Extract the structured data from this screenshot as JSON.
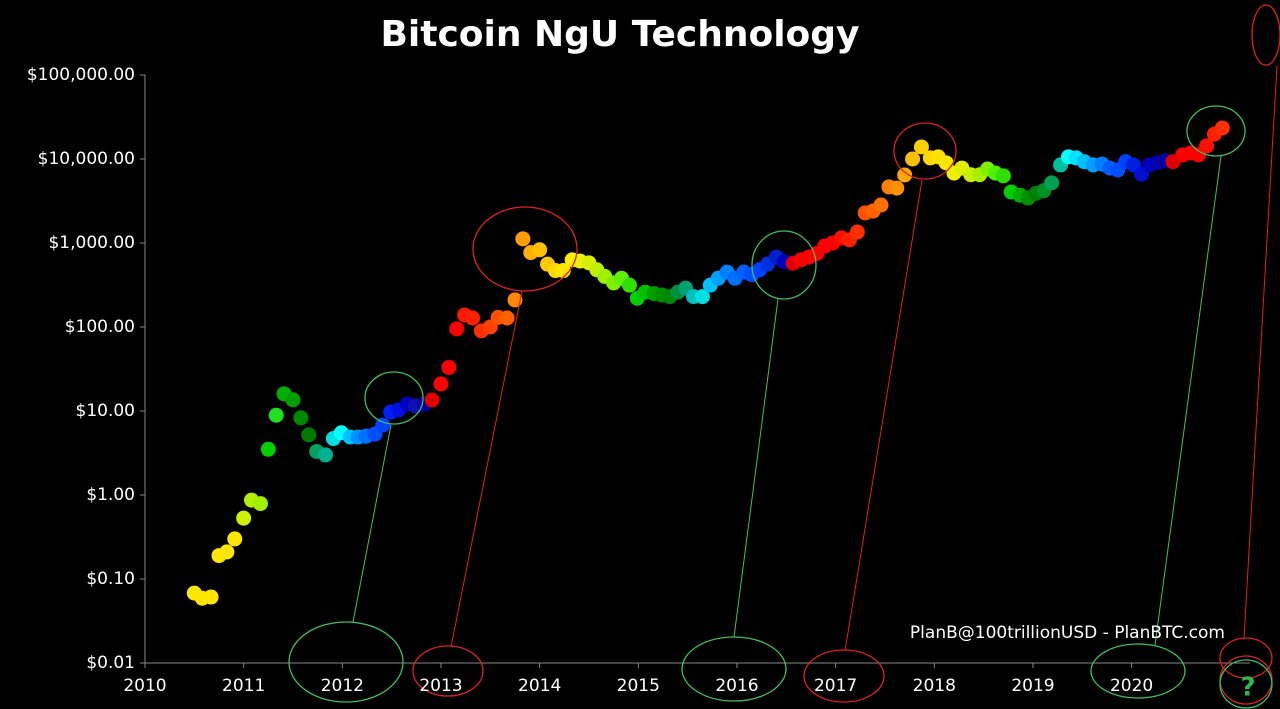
{
  "chart_data": {
    "type": "scatter",
    "title": "Bitcoin NgU Technology",
    "annotations": [
      "PlanB@100trillionUSD - PlanBTC.com",
      "?"
    ],
    "log_scale_y": true,
    "grid": false,
    "xlim": [
      2010,
      2021.2
    ],
    "xticks": [
      2010,
      2011,
      2012,
      2013,
      2014,
      2015,
      2016,
      2017,
      2018,
      2019,
      2020
    ],
    "ylim": [
      0.01,
      100000
    ],
    "yticks": [
      {
        "value": 0.01,
        "label": "$0.01"
      },
      {
        "value": 0.1,
        "label": "$0.10"
      },
      {
        "value": 1,
        "label": "$1.00"
      },
      {
        "value": 10,
        "label": "$10.00"
      },
      {
        "value": 100,
        "label": "$100.00"
      },
      {
        "value": 1000,
        "label": "$1,000.00"
      },
      {
        "value": 10000,
        "label": "$10,000.00"
      },
      {
        "value": 100000,
        "label": "$100,000.00"
      }
    ],
    "x": [
      2010.5,
      2010.58,
      2010.67,
      2010.75,
      2010.83,
      2010.91,
      2011.0,
      2011.08,
      2011.17,
      2011.25,
      2011.33,
      2011.41,
      2011.5,
      2011.58,
      2011.66,
      2011.74,
      2011.83,
      2011.91,
      2011.99,
      2012.08,
      2012.16,
      2012.24,
      2012.33,
      2012.41,
      2012.49,
      2012.57,
      2012.66,
      2012.74,
      2012.83,
      2012.91,
      2013.0,
      2013.08,
      2013.16,
      2013.24,
      2013.32,
      2013.41,
      2013.5,
      2013.58,
      2013.67,
      2013.75,
      2013.83,
      2013.91,
      2014.0,
      2014.08,
      2014.16,
      2014.24,
      2014.33,
      2014.41,
      2014.5,
      2014.58,
      2014.66,
      2014.75,
      2014.83,
      2014.91,
      2014.99,
      2015.07,
      2015.16,
      2015.24,
      2015.32,
      2015.4,
      2015.48,
      2015.56,
      2015.65,
      2015.73,
      2015.81,
      2015.9,
      2015.98,
      2016.07,
      2016.15,
      2016.23,
      2016.31,
      2016.4,
      2016.48,
      2016.57,
      2016.65,
      2016.73,
      2016.81,
      2016.89,
      2016.97,
      2017.06,
      2017.14,
      2017.22,
      2017.3,
      2017.38,
      2017.46,
      2017.54,
      2017.62,
      2017.7,
      2017.78,
      2017.87,
      2017.96,
      2018.04,
      2018.12,
      2018.2,
      2018.28,
      2018.37,
      2018.46,
      2018.54,
      2018.62,
      2018.7,
      2018.78,
      2018.87,
      2018.95,
      2019.03,
      2019.11,
      2019.19,
      2019.28,
      2019.36,
      2019.44,
      2019.52,
      2019.61,
      2019.7,
      2019.78,
      2019.86,
      2019.94,
      2020.02,
      2020.1,
      2020.18,
      2020.26,
      2020.34,
      2020.42,
      2020.52,
      2020.6,
      2020.68,
      2020.76,
      2020.84,
      2020.92
    ],
    "values": [
      0.068,
      0.059,
      0.061,
      0.19,
      0.21,
      0.3,
      0.53,
      0.87,
      0.79,
      3.5,
      8.9,
      16,
      13.6,
      8.3,
      5.2,
      3.3,
      3.0,
      4.7,
      5.5,
      4.9,
      4.9,
      5.0,
      5.3,
      6.8,
      9.7,
      10.3,
      12.1,
      11.5,
      12.1,
      13.5,
      21,
      33,
      95,
      139,
      128,
      90,
      100,
      130,
      128,
      210,
      1120,
      770,
      830,
      560,
      470,
      470,
      630,
      610,
      580,
      480,
      400,
      335,
      380,
      315,
      220,
      260,
      250,
      240,
      230,
      260,
      290,
      230,
      230,
      315,
      380,
      450,
      380,
      450,
      420,
      480,
      560,
      680,
      600,
      575,
      630,
      680,
      750,
      920,
      1000,
      1150,
      1090,
      1350,
      2280,
      2400,
      2830,
      4650,
      4500,
      6450,
      10000,
      13900,
      10300,
      10600,
      9000,
      6800,
      7800,
      6500,
      6500,
      7600,
      6800,
      6300,
      4050,
      3700,
      3430,
      3900,
      4200,
      5200,
      8500,
      10600,
      10300,
      9300,
      8500,
      8700,
      7800,
      7400,
      9300,
      8500,
      6600,
      8500,
      9000,
      9600,
      9300,
      11200,
      11800,
      11200,
      14300,
      19800,
      23400
    ],
    "colors": [
      "#ffe600",
      "#ffe600",
      "#ffe600",
      "#ffe600",
      "#ffe600",
      "#ffe600",
      "#d0f000",
      "#b0f000",
      "#a0f000",
      "#00d000",
      "#20e020",
      "#00b000",
      "#00a000",
      "#008800",
      "#007a00",
      "#00a060",
      "#00b090",
      "#00e0e0",
      "#00ffff",
      "#00c0ff",
      "#0090ff",
      "#0070ff",
      "#0050ff",
      "#0040ff",
      "#0020ff",
      "#0010e0",
      "#0000c0",
      "#1010b0",
      "#0000a0",
      "#e00000",
      "#ff0000",
      "#ff0000",
      "#ff0000",
      "#ff1800",
      "#ff2000",
      "#ff3000",
      "#ff4000",
      "#ff5000",
      "#ff6000",
      "#ff8800",
      "#ffa000",
      "#ffb000",
      "#ffc000",
      "#ffc800",
      "#ffd800",
      "#ffe600",
      "#ffee00",
      "#f0f000",
      "#d8f000",
      "#c0f000",
      "#a0f000",
      "#80f000",
      "#60f000",
      "#30e000",
      "#00d000",
      "#00c000",
      "#00a000",
      "#009000",
      "#008800",
      "#009040",
      "#00a070",
      "#00c0c0",
      "#00e0e0",
      "#00c0ff",
      "#00a0ff",
      "#0080ff",
      "#0070ff",
      "#0060ff",
      "#0050ff",
      "#0040ff",
      "#0030e0",
      "#0020d0",
      "#0000c0",
      "#e00000",
      "#ff0000",
      "#ff0000",
      "#ff0000",
      "#ff0000",
      "#ff0000",
      "#ff1000",
      "#ff2000",
      "#ff3000",
      "#ff5000",
      "#ff6000",
      "#ff7000",
      "#ff8000",
      "#ff9000",
      "#ffa800",
      "#ffc000",
      "#ffd000",
      "#ffd800",
      "#ffe000",
      "#ffe600",
      "#f0f000",
      "#e0f000",
      "#c8f000",
      "#a8f000",
      "#80f000",
      "#50f000",
      "#30e000",
      "#00d000",
      "#00b000",
      "#009000",
      "#008000",
      "#009020",
      "#00a050",
      "#00c0a0",
      "#00ffff",
      "#00e0ff",
      "#00c0ff",
      "#00a0ff",
      "#0080ff",
      "#0060ff",
      "#0050ff",
      "#0040ff",
      "#0020e0",
      "#0010d0",
      "#0000c0",
      "#0000b0",
      "#0000a0",
      "#e00000",
      "#ff0000",
      "#ff0000",
      "#ff0000",
      "#ff1000",
      "#ff2000",
      "#ff3000"
    ]
  }
}
